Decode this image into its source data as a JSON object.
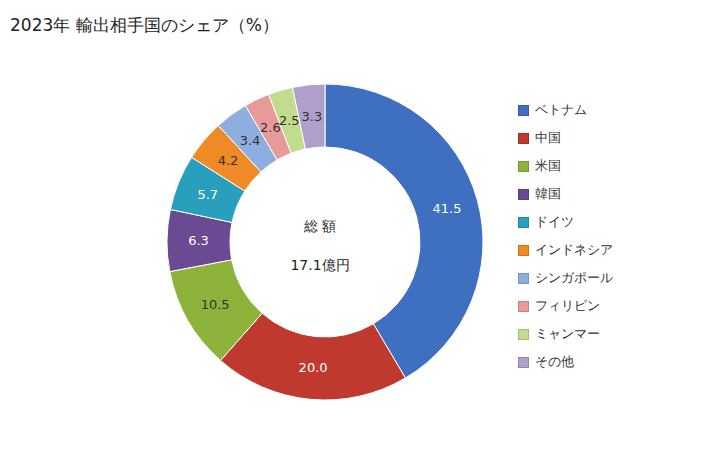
{
  "chart_data": {
    "type": "pie",
    "title": "2023年 輸出相手国のシェア（%）",
    "annotations": [
      "総 額",
      "17.1億円"
    ],
    "categories": [
      "ベトナム",
      "中国",
      "米国",
      "韓国",
      "ドイツ",
      "インドネシア",
      "シンガポール",
      "フィリピン",
      "ミャンマー",
      "その他"
    ],
    "values": [
      41.5,
      20.0,
      10.5,
      6.3,
      5.7,
      4.2,
      3.4,
      2.6,
      2.5,
      3.3
    ],
    "value_labels": [
      "41.5",
      "20.0",
      "10.5",
      "6.3",
      "5.7",
      "4.2",
      "3.4",
      "2.6",
      "2.5",
      "3.3"
    ],
    "colors": [
      "#3e6fc0",
      "#c0392f",
      "#8db33b",
      "#6a4a92",
      "#2a9fbd",
      "#ef8a26",
      "#8eaee0",
      "#e89a9a",
      "#c0dc8c",
      "#ae9fcc"
    ],
    "data_labels": true,
    "legend": "right"
  }
}
